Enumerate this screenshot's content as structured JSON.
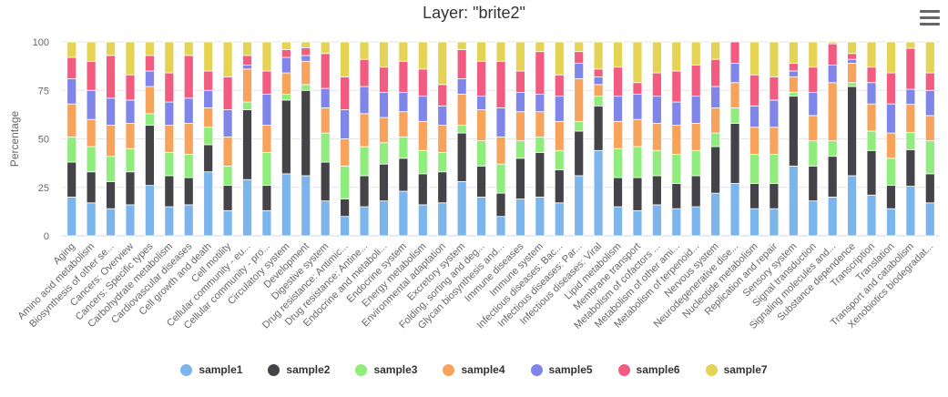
{
  "menu": {
    "icon": "hamburger-menu-icon"
  },
  "chart_data": {
    "type": "bar",
    "stacked": true,
    "title": "Layer: \"brite2\"",
    "ylabel": "Percentage",
    "xlabel": "",
    "ylim": [
      0,
      100
    ],
    "yticks": [
      0,
      25,
      50,
      75,
      100
    ],
    "grid": true,
    "legend_position": "bottom",
    "categories": [
      "Aging",
      "Amino acid metabolism",
      "Biosynthesis of other se...",
      "Cancers: Overview",
      "Cancers: Specific types",
      "Carbohydrate metabolism",
      "Cardiovascular diseases",
      "Cell growth and death",
      "Cell motility",
      "Cellular community - eu...",
      "Cellular community - pro...",
      "Circulatory system",
      "Development",
      "Digestive system",
      "Drug resistance: Antimic...",
      "Drug resistance: Antine...",
      "Endocrine and metaboli...",
      "Endocrine system",
      "Energy metabolism",
      "Environmental adaptation",
      "Excretory system",
      "Folding, sorting and deg...",
      "Glycan biosynthesis and...",
      "Immune diseases",
      "Immune system",
      "Infectious diseases: Bac...",
      "Infectious diseases: Par...",
      "Infectious diseases: Viral",
      "Lipid metabolism",
      "Membrane transport",
      "Metabolism of cofactors ...",
      "Metabolism of other ami...",
      "Metabolism of terpenoid...",
      "Nervous system",
      "Neurodegenerative dise...",
      "Nucleotide metabolism",
      "Replication and repair",
      "Sensory system",
      "Signal transduction",
      "Signaling molecules and...",
      "Substance dependence",
      "Transcription",
      "Translation",
      "Transport and catabolism",
      "Xenobiotics biodegradat..."
    ],
    "series": [
      {
        "name": "sample1",
        "color": "#7cb5ec",
        "values": [
          20,
          17,
          14,
          16,
          26,
          15,
          16,
          33,
          13,
          29,
          13,
          32,
          31,
          18,
          10,
          15,
          18,
          23,
          16,
          17,
          28,
          20,
          10,
          19,
          20,
          17,
          31,
          44,
          15,
          13,
          16,
          14,
          15,
          22,
          27,
          14,
          14,
          36,
          18,
          20,
          31,
          21,
          14,
          23,
          17
        ]
      },
      {
        "name": "sample2",
        "color": "#434348",
        "values": [
          18,
          16,
          14,
          17,
          31,
          16,
          14,
          14,
          13,
          36,
          13,
          38,
          44,
          20,
          9,
          16,
          19,
          17,
          16,
          16,
          25,
          16,
          12,
          21,
          23,
          17,
          23,
          23,
          15,
          17,
          15,
          13,
          16,
          24,
          31,
          13,
          13,
          36,
          18,
          21,
          46,
          23,
          12,
          17,
          15
        ]
      },
      {
        "name": "sample3",
        "color": "#90ed7d",
        "values": [
          13,
          13,
          13,
          12,
          6,
          12,
          12,
          9,
          10,
          4,
          17,
          3,
          3,
          15,
          17,
          15,
          11,
          11,
          12,
          10,
          4,
          13,
          15,
          9,
          8,
          10,
          5,
          5,
          15,
          16,
          13,
          15,
          13,
          7,
          8,
          15,
          15,
          2,
          13,
          8,
          2,
          10,
          14,
          8,
          17
        ]
      },
      {
        "name": "sample4",
        "color": "#f7a35c",
        "values": [
          17,
          14,
          16,
          13,
          14,
          14,
          16,
          10,
          15,
          17,
          14,
          11,
          12,
          13,
          14,
          17,
          13,
          13,
          15,
          14,
          16,
          16,
          14,
          15,
          13,
          15,
          22,
          6,
          14,
          14,
          14,
          15,
          14,
          13,
          13,
          14,
          14,
          8,
          13,
          30,
          10,
          14,
          13,
          13,
          13
        ]
      },
      {
        "name": "sample5",
        "color": "#8085e9",
        "values": [
          13,
          15,
          14,
          12,
          8,
          12,
          13,
          9,
          14,
          2,
          16,
          8,
          3,
          10,
          15,
          14,
          13,
          10,
          13,
          10,
          8,
          7,
          15,
          10,
          9,
          13,
          8,
          4,
          13,
          13,
          14,
          12,
          14,
          11,
          10,
          11,
          14,
          3,
          12,
          9,
          2,
          11,
          15,
          7,
          13
        ]
      },
      {
        "name": "sample6",
        "color": "#f15c80",
        "values": [
          11,
          15,
          22,
          13,
          8,
          15,
          22,
          10,
          17,
          5,
          12,
          4,
          4,
          18,
          17,
          14,
          13,
          16,
          14,
          11,
          15,
          18,
          24,
          11,
          22,
          11,
          6,
          4,
          15,
          6,
          12,
          16,
          16,
          14,
          11,
          16,
          12,
          4,
          13,
          11,
          3,
          8,
          16,
          19,
          9
        ]
      },
      {
        "name": "sample7",
        "color": "#e4d354",
        "values": [
          8,
          10,
          7,
          17,
          7,
          16,
          7,
          15,
          18,
          7,
          15,
          4,
          3,
          6,
          18,
          9,
          13,
          10,
          14,
          22,
          4,
          10,
          10,
          15,
          5,
          17,
          5,
          14,
          13,
          21,
          16,
          15,
          12,
          9,
          0,
          17,
          18,
          11,
          13,
          1,
          6,
          13,
          16,
          3,
          16
        ]
      }
    ]
  }
}
